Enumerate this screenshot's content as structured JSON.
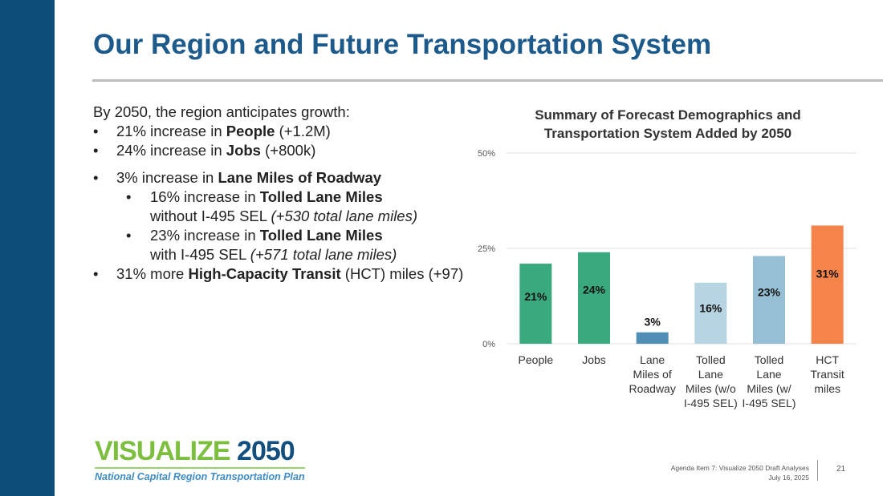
{
  "title": "Our Region and Future Transportation System",
  "body": {
    "intro": "By 2050, the region anticipates growth:",
    "bullets": [
      {
        "pre": "21% increase in ",
        "bold": "People",
        "post": " (+1.2M)"
      },
      {
        "pre": "24% increase in ",
        "bold": "Jobs",
        "post": " (+800k)"
      },
      {
        "pre": "3% increase in ",
        "bold": "Lane Miles of Roadway",
        "post": ""
      },
      {
        "pre": "16% increase in ",
        "bold": "Tolled Lane Miles",
        "post": "",
        "line2": "without I-495 SEL ",
        "italic": "(+530 total lane miles)"
      },
      {
        "pre": "23% increase in ",
        "bold": "Tolled Lane Miles",
        "post": "",
        "line2": "with I-495 SEL ",
        "italic": "(+571 total lane miles)"
      },
      {
        "pre": "31% more ",
        "bold": "High-Capacity Transit",
        "post": " (HCT) miles (+97)"
      }
    ]
  },
  "chart_data": {
    "type": "bar",
    "title": "Summary of Forecast Demographics and Transportation System Added by 2050",
    "categories": [
      [
        "People"
      ],
      [
        "Jobs"
      ],
      [
        "Lane",
        "Miles of",
        "Roadway"
      ],
      [
        "Tolled",
        "Lane",
        "Miles (w/o",
        "I-495 SEL)"
      ],
      [
        "Tolled",
        "Lane",
        "Miles (w/",
        "I-495 SEL)"
      ],
      [
        "HCT",
        "Transit",
        "miles"
      ]
    ],
    "values": [
      21,
      24,
      3,
      16,
      23,
      31
    ],
    "data_labels": [
      "21%",
      "24%",
      "3%",
      "16%",
      "23%",
      "31%"
    ],
    "colors": [
      "#3aa97e",
      "#3aa97e",
      "#4f8fb5",
      "#b7d4e2",
      "#96bfd5",
      "#f4844a"
    ],
    "yticks": [
      "0%",
      "25%",
      "50%"
    ],
    "ylim": [
      0,
      50
    ],
    "grid": true
  },
  "logo": {
    "main_green": "VISUALIZE ",
    "main_blue": "2050",
    "sub": "National Capital Region Transportation Plan"
  },
  "footer": {
    "line1": "Agenda Item 7: Visualize 2050 Draft Analyses",
    "line2": "July 16, 2025",
    "page": "21"
  }
}
